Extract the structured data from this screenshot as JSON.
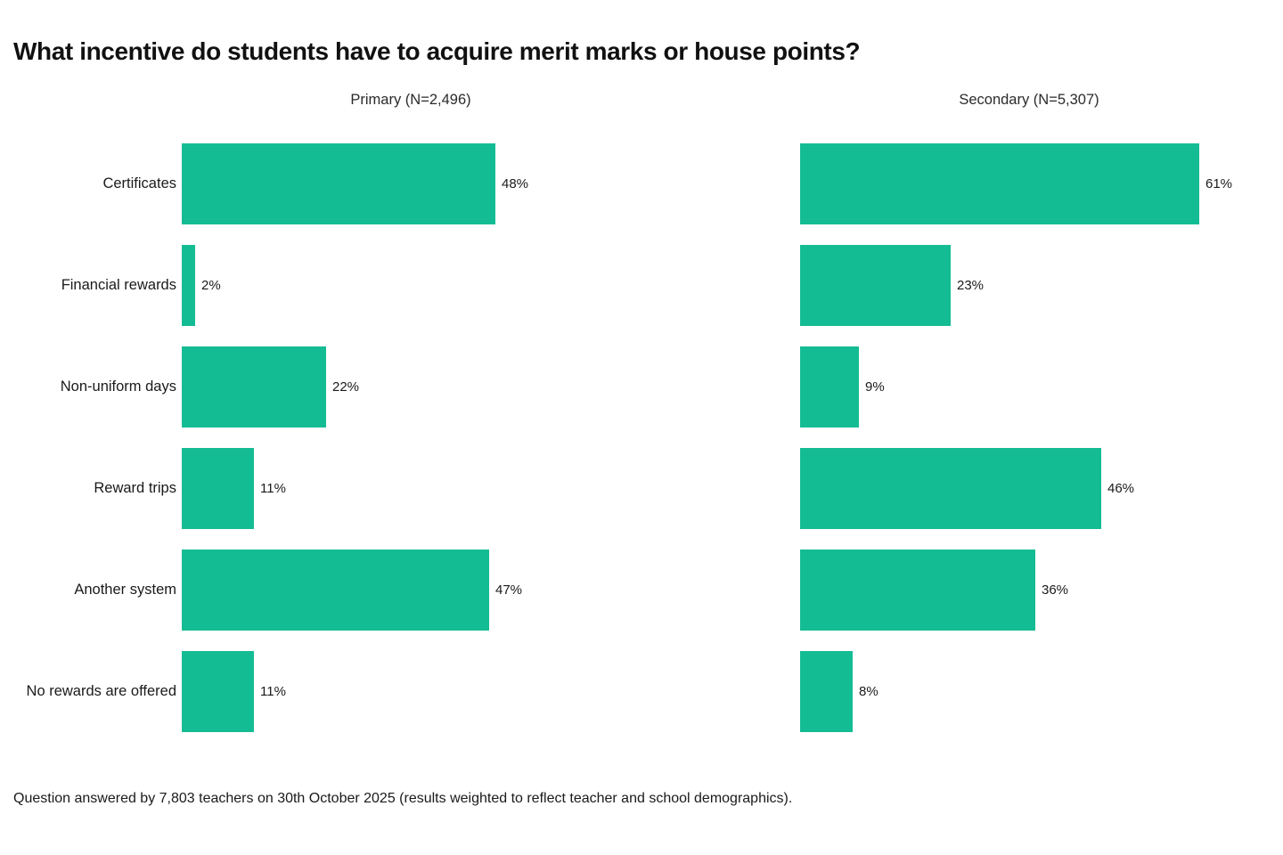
{
  "title": "What incentive do students have to acquire merit marks or house points?",
  "footnote": "Question answered by 7,803 teachers on 30th October 2025 (results weighted to reflect teacher and school demographics).",
  "colors": {
    "bar": "#14BC94",
    "title_text": "#111111",
    "body_text": "#1a1a1a"
  },
  "chart_data": {
    "type": "bar",
    "orientation": "horizontal",
    "title": "What incentive do students have to acquire merit marks or house points?",
    "categories": [
      "Certificates",
      "Financial rewards",
      "Non-uniform days",
      "Reward trips",
      "Another system",
      "No rewards are offered"
    ],
    "series": [
      {
        "name": "Primary (N=2,496)",
        "values": [
          48,
          2,
          22,
          11,
          47,
          11
        ]
      },
      {
        "name": "Secondary (N=5,307)",
        "values": [
          61,
          23,
          9,
          46,
          36,
          8
        ]
      }
    ],
    "unit": "%",
    "xlim": [
      0,
      70
    ],
    "value_labels": true,
    "grid": false,
    "legend_position": "column-headers"
  }
}
